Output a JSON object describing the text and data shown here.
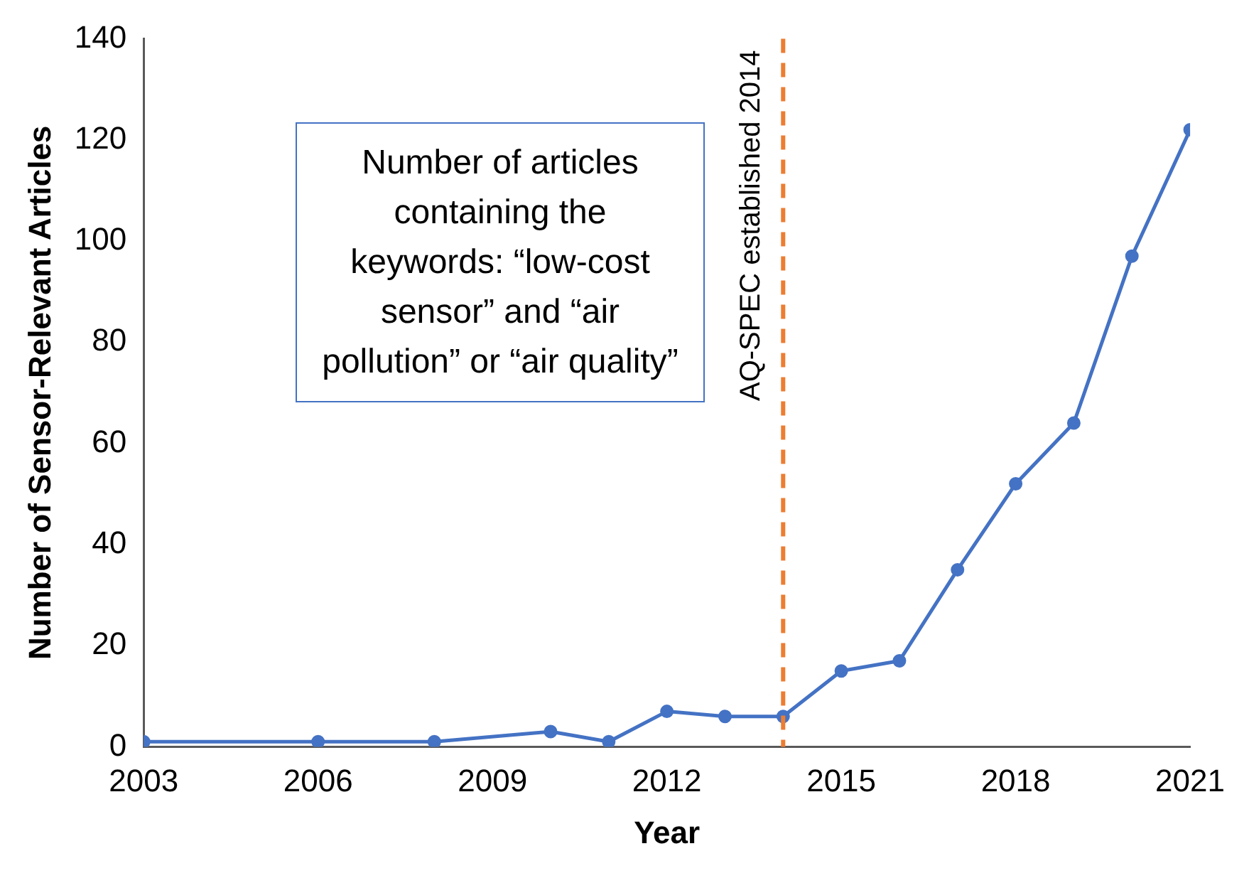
{
  "chart_data": {
    "type": "line",
    "xlabel": "Year",
    "ylabel": "Number of Sensor-Relevant Articles",
    "x": [
      2003,
      2006,
      2008,
      2010,
      2011,
      2012,
      2013,
      2014,
      2015,
      2016,
      2017,
      2018,
      2019,
      2020,
      2021
    ],
    "series": [
      {
        "color": "#4472c4",
        "values": [
          1,
          1,
          1,
          3,
          1,
          7,
          6,
          6,
          15,
          17,
          35,
          52,
          64,
          97,
          122
        ]
      }
    ],
    "xlim": [
      2003,
      2021
    ],
    "xticks": [
      2003,
      2006,
      2009,
      2012,
      2015,
      2018,
      2021
    ],
    "ylim": [
      0,
      140
    ],
    "yticks": [
      0,
      20,
      40,
      60,
      80,
      100,
      120,
      140
    ],
    "grid": false,
    "legend": false,
    "marker": "circle",
    "line_style": "solid",
    "ref_lines": [
      {
        "axis": "x",
        "value": 2014,
        "label": "AQ-SPEC established 2014",
        "color": "#ed7d31",
        "line_style": "dashed"
      }
    ],
    "annotations": [
      "Number of articles containing the keywords: “low-cost sensor” and “air pollution” or “air quality”"
    ]
  }
}
